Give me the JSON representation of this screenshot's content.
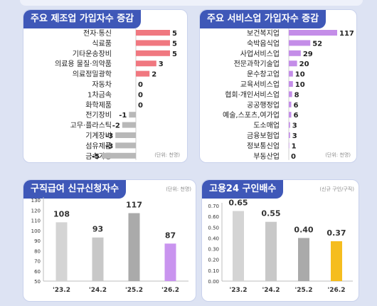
{
  "charts": {
    "mfg": {
      "title": "주요 제조업 가입자수 증감",
      "unit": "(단위: 천명)",
      "bar_color": "#f07880",
      "neg_color": "#b8b8b8"
    },
    "svc": {
      "title": "주요 서비스업 가입자수 증감",
      "unit": "(단위: 천명)",
      "bar_color": "#c48de8",
      "neg_color": "#b8b8b8"
    },
    "claims": {
      "title": "구직급여 신규신청자수",
      "unit": "(단위: 천명)",
      "colors": [
        "#d4d4d4",
        "#c8c8c8",
        "#aaaaaa",
        "#c994ef"
      ]
    },
    "ratio": {
      "title": "고용24 구인배수",
      "unit": "(신규 구인/구직)",
      "colors": [
        "#d4d4d4",
        "#c8c8c8",
        "#aaaaaa",
        "#f5bd1f"
      ]
    }
  },
  "chart_data": [
    {
      "id": "mfg",
      "type": "bar",
      "orientation": "horizontal",
      "title": "주요 제조업 가입자수 증감",
      "categories": [
        "전자·통신",
        "식료품",
        "기타운송장비",
        "의료용 물질·의약품",
        "의료정밀광학",
        "자동차",
        "1차금속",
        "화학제품",
        "전기장비",
        "고무·플라스틱",
        "기계장비",
        "섬유제품",
        "금속가공"
      ],
      "values": [
        5,
        5,
        5,
        3,
        2,
        0,
        0,
        0,
        -1,
        -2,
        -3,
        -3,
        -5
      ],
      "xlim": [
        -5,
        5
      ]
    },
    {
      "id": "svc",
      "type": "bar",
      "orientation": "horizontal",
      "title": "주요 서비스업 가입자수 증감",
      "categories": [
        "보건복지업",
        "숙박음식업",
        "사업서비스업",
        "전문과학기술업",
        "운수창고업",
        "교육서비스업",
        "협회·개인서비스업",
        "공공행정업",
        "예술,스포츠,여가업",
        "도소매업",
        "금융보험업",
        "정보통신업",
        "부동산업"
      ],
      "values": [
        117,
        52,
        29,
        20,
        10,
        10,
        8,
        6,
        6,
        3,
        3,
        1,
        0
      ],
      "xlim": [
        0,
        117
      ]
    },
    {
      "id": "claims",
      "type": "bar",
      "title": "구직급여 신규신청자수",
      "categories": [
        "'23.2",
        "'24.2",
        "'25.2",
        "'26.2"
      ],
      "values": [
        108,
        93,
        117,
        87
      ],
      "ylim": [
        50,
        130
      ],
      "yticks": [
        50,
        60,
        70,
        80,
        90,
        100,
        110,
        120,
        130
      ],
      "value_labels": [
        "108",
        "93",
        "117",
        "87"
      ],
      "ytick_labels": [
        "50",
        "60",
        "70",
        "80",
        "90",
        "100",
        "110",
        "120",
        "130"
      ]
    },
    {
      "id": "ratio",
      "type": "bar",
      "title": "고용24 구인배수",
      "categories": [
        "'23.2",
        "'24.2",
        "'25.2",
        "'26.2"
      ],
      "values": [
        0.65,
        0.55,
        0.4,
        0.37
      ],
      "ylim": [
        0,
        0.7
      ],
      "yticks": [
        0,
        0.1,
        0.2,
        0.3,
        0.4,
        0.5,
        0.6,
        0.7
      ],
      "value_labels": [
        "0.65",
        "0.55",
        "0.40",
        "0.37"
      ],
      "ytick_labels": [
        "0.00",
        "0.10",
        "0.20",
        "0.30",
        "0.40",
        "0.50",
        "0.60",
        "0.70"
      ]
    }
  ]
}
